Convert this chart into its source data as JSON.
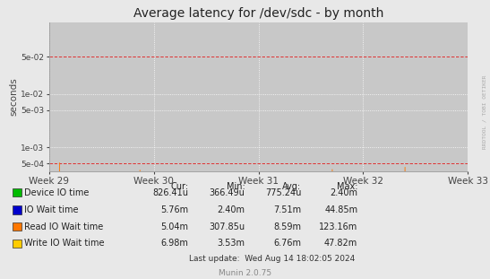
{
  "title": "Average latency for /dev/sdc - by month",
  "ylabel": "seconds",
  "xlabel_ticks": [
    "Week 29",
    "Week 30",
    "Week 31",
    "Week 32",
    "Week 33"
  ],
  "ylim_log": [
    0.00035,
    0.22
  ],
  "yticks": [
    0.0005,
    0.001,
    0.005,
    0.01,
    0.05
  ],
  "ytick_labels": [
    "5e-04",
    "1e-03",
    "5e-03",
    "1e-02",
    "5e-02"
  ],
  "bg_color": "#e8e8e8",
  "plot_bg_color": "#c8c8c8",
  "grid_color": "#ffffff",
  "title_fontsize": 10,
  "legend_labels": [
    "Device IO time",
    "IO Wait time",
    "Read IO Wait time",
    "Write IO Wait time"
  ],
  "legend_colors": [
    "#00bb00",
    "#0000cc",
    "#ff7700",
    "#ffcc00"
  ],
  "footer_text": "Munin 2.0.75",
  "last_update": "Last update:  Wed Aug 14 18:02:05 2024",
  "table_headers": [
    "Cur:",
    "Min:",
    "Avg:",
    "Max:"
  ],
  "table_values": [
    [
      "826.41u",
      "366.49u",
      "775.24u",
      "2.40m"
    ],
    [
      "5.76m",
      "2.40m",
      "7.51m",
      "44.85m"
    ],
    [
      "5.04m",
      "307.85u",
      "8.59m",
      "123.16m"
    ],
    [
      "6.98m",
      "3.53m",
      "6.76m",
      "47.82m"
    ]
  ],
  "watermark": "RRDTOOL / TOBI OETIKER",
  "n_points": 600,
  "seed": 42,
  "green_base": -6.1,
  "green_noise": 0.35,
  "orange_base": -4.9,
  "orange_noise": 0.5,
  "blue_base": -5.05,
  "blue_noise": 0.25,
  "yellow_base": -4.95,
  "yellow_noise": 0.25
}
